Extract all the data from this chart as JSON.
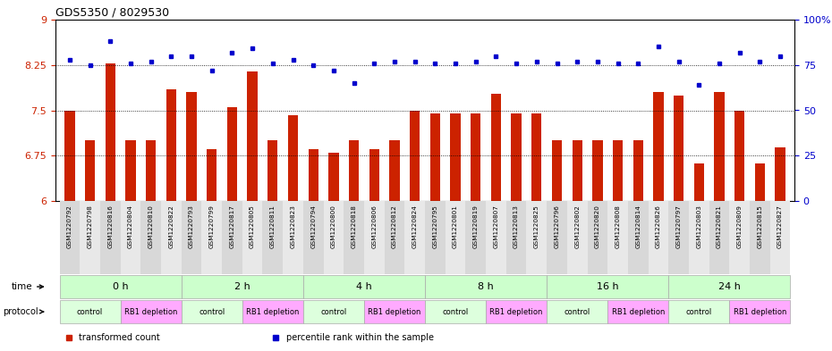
{
  "title": "GDS5350 / 8029530",
  "samples": [
    "GSM1220792",
    "GSM1220798",
    "GSM1220816",
    "GSM1220804",
    "GSM1220810",
    "GSM1220822",
    "GSM1220793",
    "GSM1220799",
    "GSM1220817",
    "GSM1220805",
    "GSM1220811",
    "GSM1220823",
    "GSM1220794",
    "GSM1220800",
    "GSM1220818",
    "GSM1220806",
    "GSM1220812",
    "GSM1220824",
    "GSM1220795",
    "GSM1220801",
    "GSM1220819",
    "GSM1220807",
    "GSM1220813",
    "GSM1220825",
    "GSM1220796",
    "GSM1220802",
    "GSM1220820",
    "GSM1220808",
    "GSM1220814",
    "GSM1220826",
    "GSM1220797",
    "GSM1220803",
    "GSM1220821",
    "GSM1220809",
    "GSM1220815",
    "GSM1220827"
  ],
  "bar_values": [
    7.5,
    7.0,
    8.28,
    7.0,
    7.0,
    7.85,
    7.8,
    6.85,
    7.55,
    8.15,
    7.0,
    7.42,
    6.85,
    6.8,
    7.0,
    6.85,
    7.0,
    7.5,
    7.45,
    7.45,
    7.45,
    7.78,
    7.45,
    7.45,
    7.0,
    7.0,
    7.0,
    7.0,
    7.0,
    7.8,
    7.75,
    6.62,
    7.8,
    7.5,
    6.62,
    6.88
  ],
  "blue_values": [
    78,
    75,
    88,
    76,
    77,
    80,
    80,
    72,
    82,
    84,
    76,
    78,
    75,
    72,
    65,
    76,
    77,
    77,
    76,
    76,
    77,
    80,
    76,
    77,
    76,
    77,
    77,
    76,
    76,
    85,
    77,
    64,
    76,
    82,
    77,
    80
  ],
  "ylim_left": [
    6,
    9
  ],
  "ylim_right": [
    0,
    100
  ],
  "yticks_left": [
    6,
    6.75,
    7.5,
    8.25,
    9
  ],
  "yticks_right": [
    0,
    25,
    50,
    75,
    100
  ],
  "ytick_labels_right": [
    "0",
    "25",
    "50",
    "75",
    "100%"
  ],
  "bar_color": "#cc2200",
  "dot_color": "#0000cc",
  "time_groups": [
    {
      "label": "0 h",
      "start": 0,
      "end": 6
    },
    {
      "label": "2 h",
      "start": 6,
      "end": 12
    },
    {
      "label": "4 h",
      "start": 12,
      "end": 18
    },
    {
      "label": "8 h",
      "start": 18,
      "end": 24
    },
    {
      "label": "16 h",
      "start": 24,
      "end": 30
    },
    {
      "label": "24 h",
      "start": 30,
      "end": 36
    }
  ],
  "protocol_groups": [
    {
      "label": "control",
      "start": 0,
      "end": 3,
      "color": "#ddffdd"
    },
    {
      "label": "RB1 depletion",
      "start": 3,
      "end": 6,
      "color": "#ffaaff"
    },
    {
      "label": "control",
      "start": 6,
      "end": 9,
      "color": "#ddffdd"
    },
    {
      "label": "RB1 depletion",
      "start": 9,
      "end": 12,
      "color": "#ffaaff"
    },
    {
      "label": "control",
      "start": 12,
      "end": 15,
      "color": "#ddffdd"
    },
    {
      "label": "RB1 depletion",
      "start": 15,
      "end": 18,
      "color": "#ffaaff"
    },
    {
      "label": "control",
      "start": 18,
      "end": 21,
      "color": "#ddffdd"
    },
    {
      "label": "RB1 depletion",
      "start": 21,
      "end": 24,
      "color": "#ffaaff"
    },
    {
      "label": "control",
      "start": 24,
      "end": 27,
      "color": "#ddffdd"
    },
    {
      "label": "RB1 depletion",
      "start": 27,
      "end": 30,
      "color": "#ffaaff"
    },
    {
      "label": "control",
      "start": 30,
      "end": 33,
      "color": "#ddffdd"
    },
    {
      "label": "RB1 depletion",
      "start": 33,
      "end": 36,
      "color": "#ffaaff"
    }
  ],
  "time_color": "#ccffcc",
  "legend_items": [
    {
      "label": "transformed count",
      "color": "#cc2200"
    },
    {
      "label": "percentile rank within the sample",
      "color": "#0000cc"
    }
  ]
}
